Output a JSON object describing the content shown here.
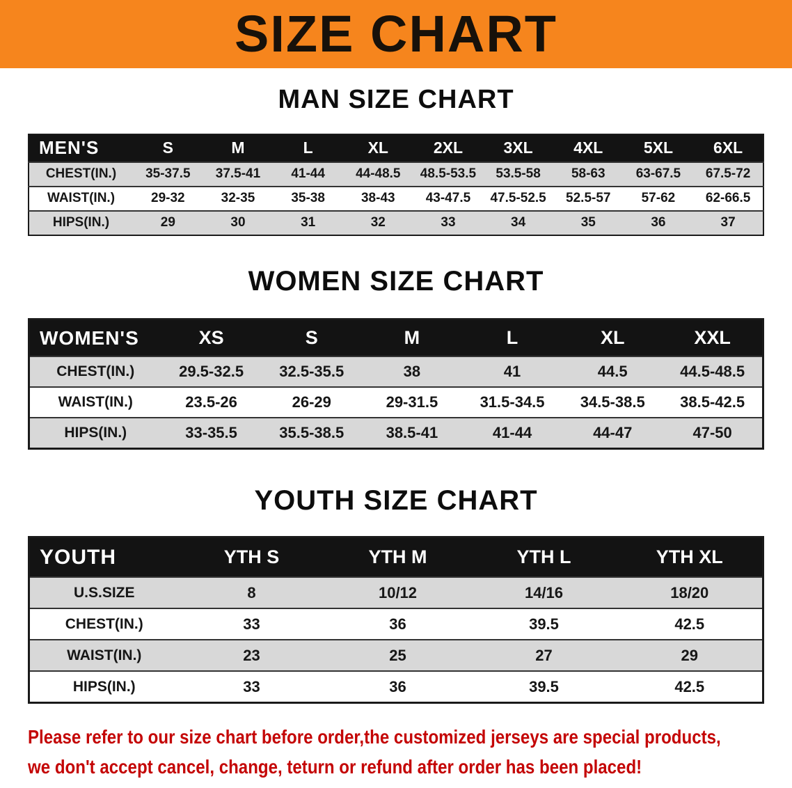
{
  "banner": {
    "title": "SIZE CHART"
  },
  "sections": [
    {
      "heading": "MAN SIZE CHART",
      "corner": "MEN'S",
      "columns": [
        "S",
        "M",
        "L",
        "XL",
        "2XL",
        "3XL",
        "4XL",
        "5XL",
        "6XL"
      ],
      "rows": [
        {
          "label": "CHEST(IN.)",
          "values": [
            "35-37.5",
            "37.5-41",
            "41-44",
            "44-48.5",
            "48.5-53.5",
            "53.5-58",
            "58-63",
            "63-67.5",
            "67.5-72"
          ]
        },
        {
          "label": "WAIST(IN.)",
          "values": [
            "29-32",
            "32-35",
            "35-38",
            "38-43",
            "43-47.5",
            "47.5-52.5",
            "52.5-57",
            "57-62",
            "62-66.5"
          ]
        },
        {
          "label": "HIPS(IN.)",
          "values": [
            "29",
            "30",
            "31",
            "32",
            "33",
            "34",
            "35",
            "36",
            "37"
          ]
        }
      ]
    },
    {
      "heading": "WOMEN SIZE CHART",
      "corner": "WOMEN'S",
      "columns": [
        "XS",
        "S",
        "M",
        "L",
        "XL",
        "XXL"
      ],
      "rows": [
        {
          "label": "CHEST(IN.)",
          "values": [
            "29.5-32.5",
            "32.5-35.5",
            "38",
            "41",
            "44.5",
            "44.5-48.5"
          ]
        },
        {
          "label": "WAIST(IN.)",
          "values": [
            "23.5-26",
            "26-29",
            "29-31.5",
            "31.5-34.5",
            "34.5-38.5",
            "38.5-42.5"
          ]
        },
        {
          "label": "HIPS(IN.)",
          "values": [
            "33-35.5",
            "35.5-38.5",
            "38.5-41",
            "41-44",
            "44-47",
            "47-50"
          ]
        }
      ]
    },
    {
      "heading": "YOUTH SIZE CHART",
      "corner": "YOUTH",
      "columns": [
        "YTH S",
        "YTH M",
        "YTH L",
        "YTH XL"
      ],
      "rows": [
        {
          "label": "U.S.SIZE",
          "values": [
            "8",
            "10/12",
            "14/16",
            "18/20"
          ]
        },
        {
          "label": "CHEST(IN.)",
          "values": [
            "33",
            "36",
            "39.5",
            "42.5"
          ]
        },
        {
          "label": "WAIST(IN.)",
          "values": [
            "23",
            "25",
            "27",
            "29"
          ]
        },
        {
          "label": "HIPS(IN.)",
          "values": [
            "33",
            "36",
            "39.5",
            "42.5"
          ]
        }
      ]
    }
  ],
  "footer": {
    "line1": "Please refer to our size chart before order,the customized jerseys are special products,",
    "line2": "we don't accept cancel, change, teturn or refund after order has been placed!"
  },
  "colors": {
    "banner_orange": "#F6851D",
    "header_black": "#131313",
    "row_gray": "#D8D8D8",
    "footer_red": "#C40505"
  }
}
